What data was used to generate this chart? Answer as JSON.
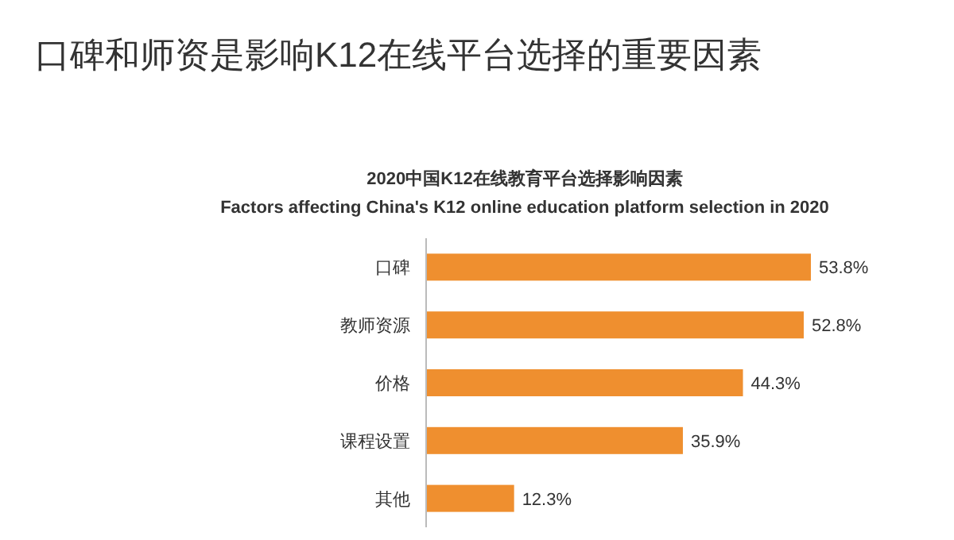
{
  "chart_data": {
    "type": "bar",
    "orientation": "horizontal",
    "title": "口碑和师资是影响K12在线平台选择的重要因素",
    "subtitle": "2020中国K12在线教育平台选择影响因素",
    "annotations": [
      "Factors affecting China's K12 online education platform selection in 2020"
    ],
    "categories": [
      "口碑",
      "教师资源",
      "价格",
      "课程设置",
      "其他"
    ],
    "values": [
      53.8,
      52.8,
      44.3,
      35.9,
      12.3
    ],
    "value_labels": [
      "53.8%",
      "52.8%",
      "44.3%",
      "35.9%",
      "12.3%"
    ],
    "color": "#ef8f2f"
  }
}
